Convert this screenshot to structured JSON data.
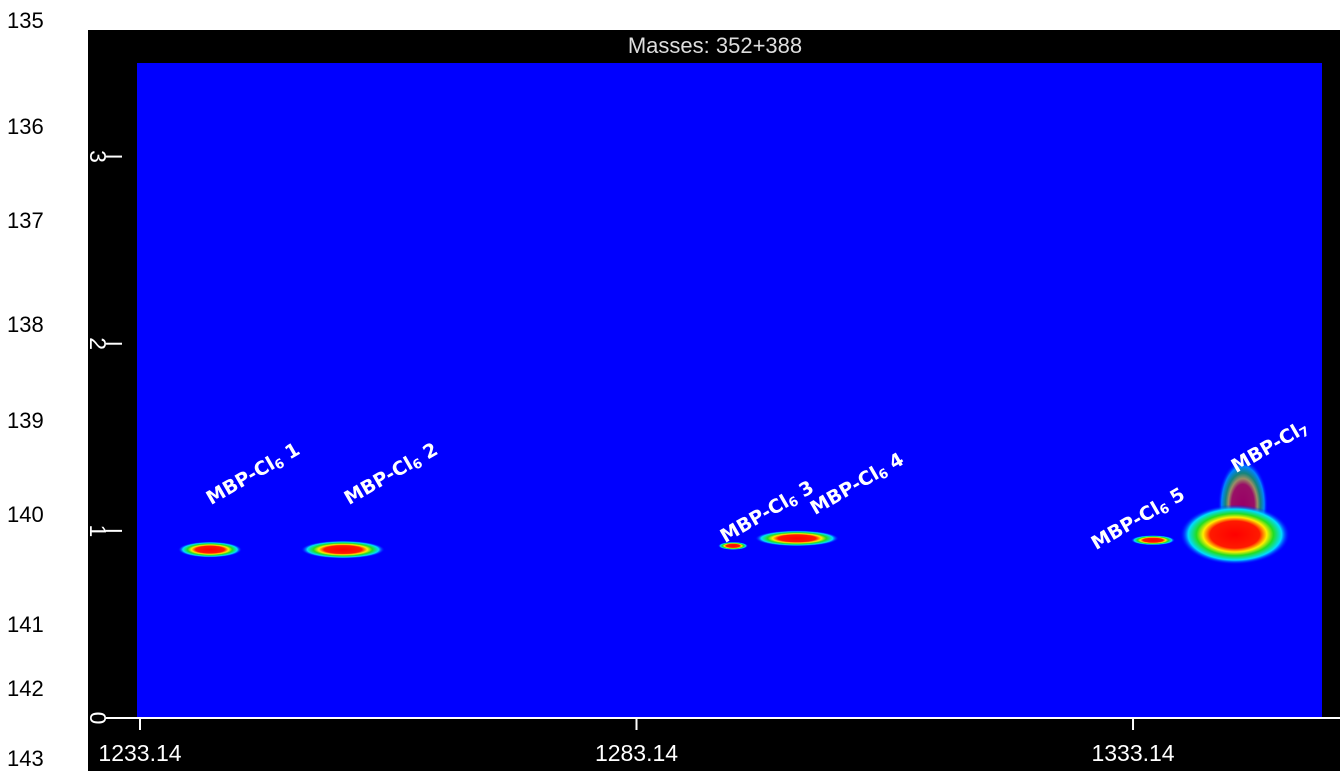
{
  "line_numbers": [
    135,
    136,
    137,
    138,
    139,
    140,
    141,
    142,
    143
  ],
  "chart_data": {
    "type": "contour",
    "title": "Masses: 352+388",
    "xlim": [
      1233.14,
      1352.14
    ],
    "xticks": [
      1233.14,
      1283.14,
      1333.14
    ],
    "ylim": [
      0,
      3.5
    ],
    "yticks": [
      0,
      1,
      2,
      3
    ],
    "peaks": {
      "x": [
        1240.19,
        1253.58,
        1292.86,
        1299.3,
        1335.15,
        1343.4
      ],
      "y": [
        0.9,
        0.9,
        0.92,
        0.96,
        0.95,
        0.98
      ]
    },
    "annotations": [
      {
        "base": "MBP-Cl",
        "sub": "6",
        "num": " 1"
      },
      {
        "base": "MBP-Cl",
        "sub": "6",
        "num": " 2"
      },
      {
        "base": "MBP-Cl",
        "sub": "6",
        "num": " 3"
      },
      {
        "base": "MBP-Cl",
        "sub": "6",
        "num": " 4"
      },
      {
        "base": "MBP-Cl",
        "sub": "6",
        "num": " 5"
      },
      {
        "base": "MBP-Cl",
        "sub": "7"
      }
    ]
  }
}
